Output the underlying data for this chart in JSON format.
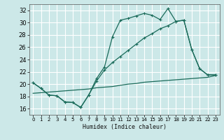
{
  "title": "",
  "xlabel": "Humidex (Indice chaleur)",
  "ylabel": "",
  "bg_color": "#cce8e8",
  "grid_color": "#ffffff",
  "line_color": "#1a6b5a",
  "xlim": [
    -0.5,
    23.5
  ],
  "ylim": [
    15.0,
    33.0
  ],
  "xticks": [
    0,
    1,
    2,
    3,
    4,
    5,
    6,
    7,
    8,
    9,
    10,
    11,
    12,
    13,
    14,
    15,
    16,
    17,
    18,
    19,
    20,
    21,
    22,
    23
  ],
  "yticks": [
    16,
    18,
    20,
    22,
    24,
    26,
    28,
    30,
    32
  ],
  "line1_x": [
    0,
    1,
    2,
    3,
    4,
    5,
    6,
    7,
    8,
    9,
    10,
    11,
    12,
    13,
    14,
    15,
    16,
    17,
    18,
    19,
    20,
    21,
    22,
    23
  ],
  "line1_y": [
    20.2,
    19.3,
    18.2,
    18.1,
    17.1,
    17.0,
    16.2,
    18.2,
    20.9,
    22.8,
    27.7,
    30.4,
    30.7,
    31.1,
    31.5,
    31.2,
    30.5,
    32.3,
    30.2,
    30.4,
    25.6,
    22.5,
    21.5,
    21.5
  ],
  "line2_x": [
    0,
    1,
    2,
    3,
    4,
    5,
    6,
    7,
    8,
    9,
    10,
    11,
    12,
    13,
    14,
    15,
    16,
    17,
    18,
    19,
    20,
    21,
    22,
    23
  ],
  "line2_y": [
    20.2,
    19.3,
    18.2,
    18.1,
    17.1,
    17.0,
    16.2,
    18.2,
    20.5,
    22.3,
    23.5,
    24.5,
    25.5,
    26.5,
    27.5,
    28.2,
    29.0,
    29.5,
    30.2,
    30.4,
    25.6,
    22.5,
    21.5,
    21.5
  ],
  "line3_x": [
    0,
    1,
    2,
    3,
    4,
    5,
    6,
    7,
    8,
    9,
    10,
    11,
    12,
    13,
    14,
    15,
    16,
    17,
    18,
    19,
    20,
    21,
    22,
    23
  ],
  "line3_y": [
    18.5,
    18.6,
    18.7,
    18.8,
    18.9,
    19.0,
    19.1,
    19.2,
    19.4,
    19.5,
    19.6,
    19.8,
    20.0,
    20.1,
    20.3,
    20.4,
    20.5,
    20.6,
    20.7,
    20.8,
    20.9,
    21.0,
    21.1,
    21.4
  ]
}
